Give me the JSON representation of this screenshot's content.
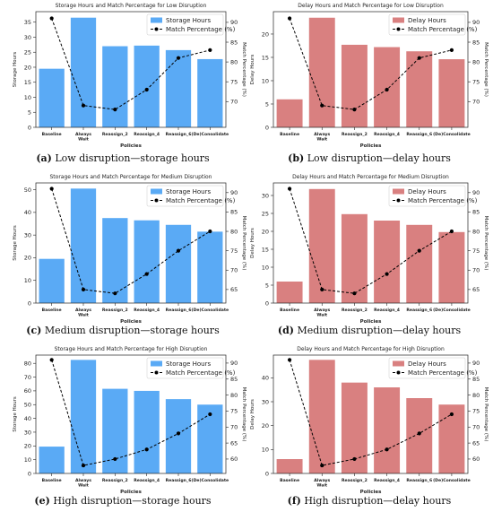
{
  "chart_data": [
    {
      "id": "a",
      "type": "bar+line",
      "title": "Storage Hours and Match Percentage for Low Disruption",
      "xlabel": "Policies",
      "ylabel": "Storage Hours",
      "y2label": "Match Percentage (%)",
      "categories": [
        "Baseline",
        "Always Wait",
        "Reassign_2",
        "Reassign_4",
        "Reassign_6",
        "(De)Consolidate"
      ],
      "bar_series": {
        "name": "Storage Hours",
        "color": "#5aaaf5",
        "values": [
          19.5,
          36.5,
          27.0,
          27.2,
          25.7,
          22.7
        ]
      },
      "line_series": {
        "name": "Match Percentage (%)",
        "color": "#000000",
        "values": [
          91,
          69,
          68,
          73,
          81,
          83
        ]
      },
      "ylim": [
        0,
        38.5
      ],
      "yticks": [
        0,
        5,
        10,
        15,
        20,
        25,
        30,
        35
      ],
      "y2lim": [
        63.5,
        92.7
      ],
      "y2ticks": [
        70,
        75,
        80,
        85,
        90
      ],
      "caption_letter": "(a)",
      "caption_text": " Low disruption—storage hours"
    },
    {
      "id": "b",
      "type": "bar+line",
      "title": "Delay Hours and Match Percentage for Low Disruption",
      "xlabel": "Policies",
      "ylabel": "Delay Hours",
      "y2label": "Match Percentage (%)",
      "categories": [
        "Baseline",
        "Always Wait",
        "Reassign_2",
        "Reassign_4",
        "Reassign_6",
        "(De)Consolidate"
      ],
      "bar_series": {
        "name": "Delay Hours",
        "color": "#d98080",
        "values": [
          6.0,
          23.5,
          17.7,
          17.2,
          16.3,
          14.6
        ]
      },
      "line_series": {
        "name": "Match Percentage (%)",
        "color": "#000000",
        "values": [
          91,
          69,
          68,
          73,
          81,
          83
        ]
      },
      "ylim": [
        0,
        24.8
      ],
      "yticks": [
        0,
        5,
        10,
        15,
        20
      ],
      "y2lim": [
        63.5,
        92.7
      ],
      "y2ticks": [
        70,
        75,
        80,
        85,
        90
      ],
      "caption_letter": "(b)",
      "caption_text": " Low disruption—delay hours"
    },
    {
      "id": "c",
      "type": "bar+line",
      "title": "Storage Hours and Match Percentage for Medium Disruption",
      "xlabel": "Policies",
      "ylabel": "Storage Hours",
      "y2label": "Match Percentage (%)",
      "categories": [
        "Baseline",
        "Always Wait",
        "Reassign_2",
        "Reassign_4",
        "Reassign_6",
        "(De)Consolidate"
      ],
      "bar_series": {
        "name": "Storage Hours",
        "color": "#5aaaf5",
        "values": [
          19.5,
          50.5,
          37.5,
          36.5,
          34.5,
          31.5
        ]
      },
      "line_series": {
        "name": "Match Percentage (%)",
        "color": "#000000",
        "values": [
          91,
          65,
          64,
          69,
          75,
          80
        ]
      },
      "ylim": [
        0,
        53
      ],
      "yticks": [
        0,
        10,
        20,
        30,
        40,
        50
      ],
      "y2lim": [
        61.5,
        92.5
      ],
      "y2ticks": [
        65,
        70,
        75,
        80,
        85,
        90
      ],
      "caption_letter": "(c)",
      "caption_text": " Medium disruption—storage hours"
    },
    {
      "id": "d",
      "type": "bar+line",
      "title": "Delay Hours and Match Percentage for Medium Disruption",
      "xlabel": "Policies",
      "ylabel": "Delay Hours",
      "y2label": "Match Percentage (%)",
      "categories": [
        "Baseline",
        "Always Wait",
        "Reassign_2",
        "Reassign_4",
        "Reassign_6",
        "(De)Consolidate"
      ],
      "bar_series": {
        "name": "Delay Hours",
        "color": "#d98080",
        "values": [
          6.0,
          31.8,
          24.8,
          23.0,
          21.8,
          19.8
        ]
      },
      "line_series": {
        "name": "Match Percentage (%)",
        "color": "#000000",
        "values": [
          91,
          65,
          64,
          69,
          75,
          80
        ]
      },
      "ylim": [
        0,
        33.5
      ],
      "yticks": [
        0,
        5,
        10,
        15,
        20,
        25,
        30
      ],
      "y2lim": [
        61.5,
        92.5
      ],
      "y2ticks": [
        65,
        70,
        75,
        80,
        85,
        90
      ],
      "caption_letter": "(d)",
      "caption_text": " Medium disruption—delay hours"
    },
    {
      "id": "e",
      "type": "bar+line",
      "title": "Storage Hours and Match Percentage for High Disruption",
      "xlabel": "Policies",
      "ylabel": "Storage Hours",
      "y2label": "Match Percentage (%)",
      "categories": [
        "Baseline",
        "Always Wait",
        "Reassign_2",
        "Reassign_4",
        "Reassign_6",
        "(De)Consolidate"
      ],
      "bar_series": {
        "name": "Storage Hours",
        "color": "#5aaaf5",
        "values": [
          19.5,
          82.5,
          61.5,
          60.0,
          54.0,
          50.0
        ]
      },
      "line_series": {
        "name": "Match Percentage (%)",
        "color": "#000000",
        "values": [
          91,
          58,
          60,
          63,
          68,
          74
        ]
      },
      "ylim": [
        0,
        86
      ],
      "yticks": [
        0,
        10,
        20,
        30,
        40,
        50,
        60,
        70,
        80
      ],
      "y2lim": [
        55.5,
        92.5
      ],
      "y2ticks": [
        60,
        65,
        70,
        75,
        80,
        85,
        90
      ],
      "caption_letter": "(e)",
      "caption_text": " High disruption—storage hours"
    },
    {
      "id": "f",
      "type": "bar+line",
      "title": "Delay Hours and Match Percentage for High Disruption",
      "xlabel": "Policies",
      "ylabel": "Delay Hours",
      "y2label": "Match Percentage (%)",
      "categories": [
        "Baseline",
        "Always Wait",
        "Reassign_2",
        "Reassign_4",
        "Reassign_6",
        "(De)Consolidate"
      ],
      "bar_series": {
        "name": "Delay Hours",
        "color": "#d98080",
        "values": [
          6.0,
          47.5,
          38.0,
          36.0,
          31.5,
          28.8
        ]
      },
      "line_series": {
        "name": "Match Percentage (%)",
        "color": "#000000",
        "values": [
          91,
          58,
          60,
          63,
          68,
          74
        ]
      },
      "ylim": [
        0,
        49.5
      ],
      "yticks": [
        0,
        10,
        20,
        30,
        40
      ],
      "y2lim": [
        55.5,
        92.5
      ],
      "y2ticks": [
        60,
        65,
        70,
        75,
        80,
        85,
        90
      ],
      "caption_letter": "(f)",
      "caption_text": " High disruption—delay hours"
    }
  ]
}
